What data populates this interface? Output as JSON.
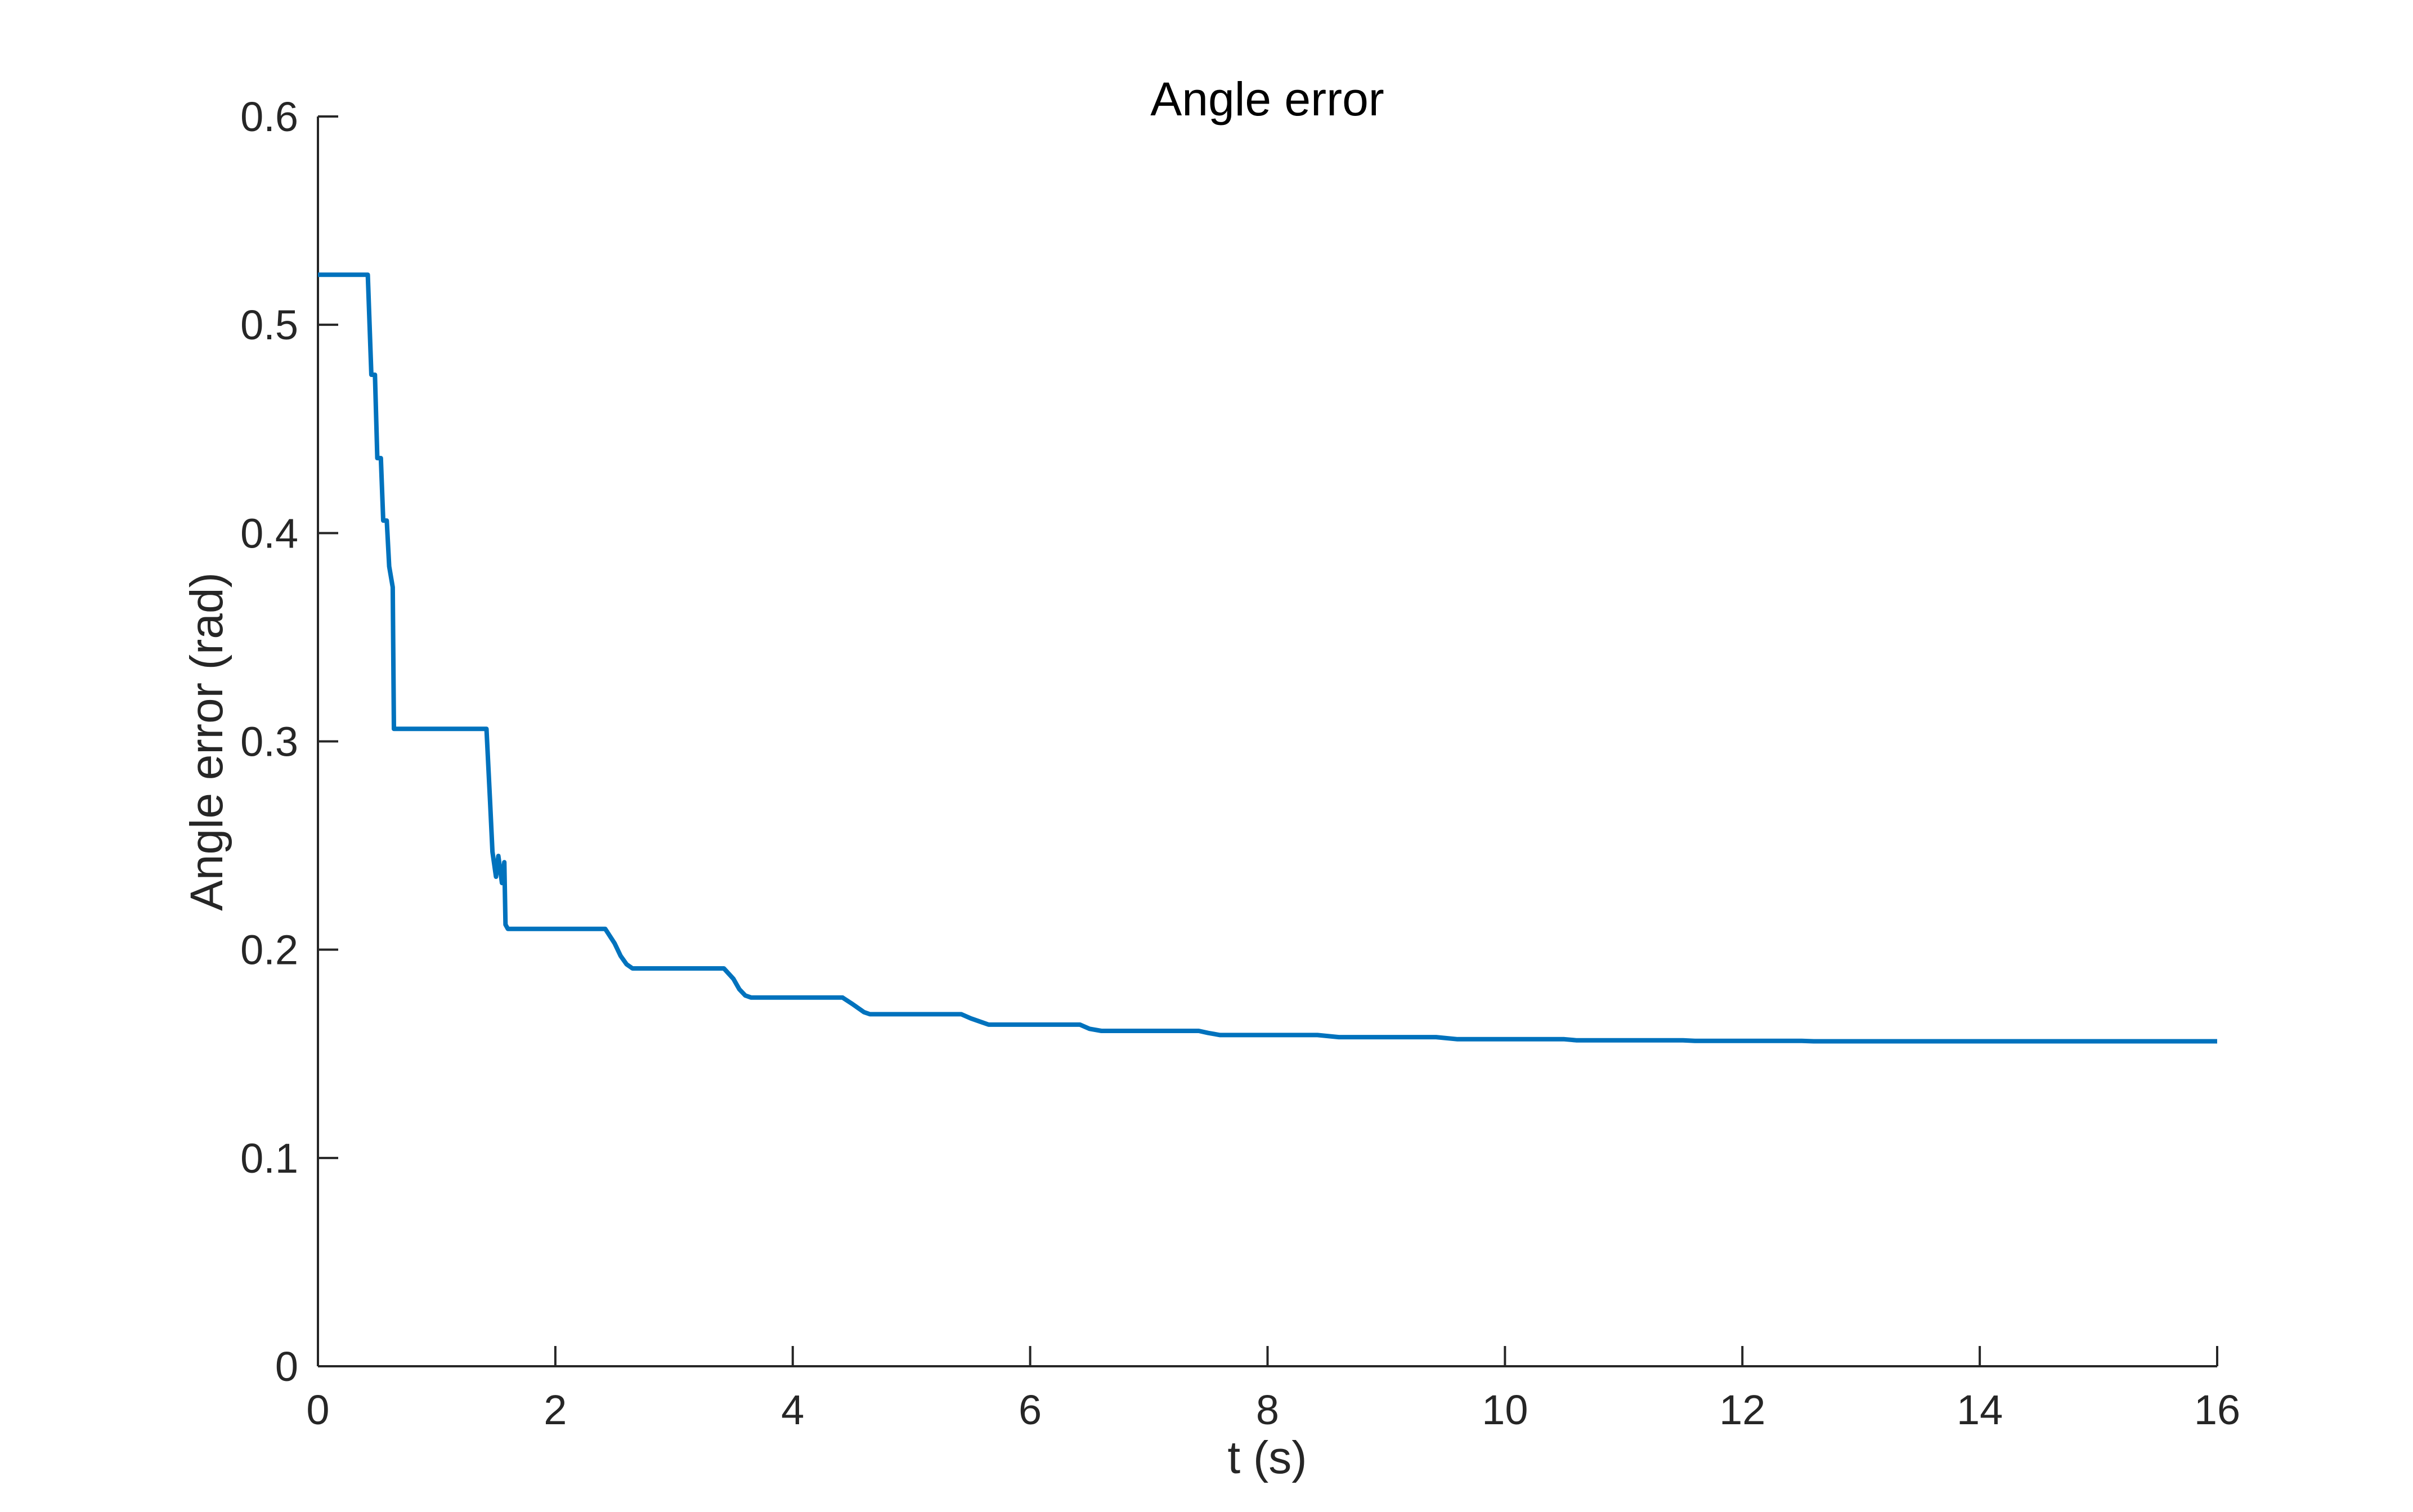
{
  "chart_data": {
    "type": "line",
    "title": "Angle error",
    "xlabel": "t (s)",
    "ylabel": "Angle error (rad)",
    "xlim": [
      0,
      16
    ],
    "ylim": [
      0,
      0.6
    ],
    "xticks": [
      0,
      2,
      4,
      6,
      8,
      10,
      12,
      14,
      16
    ],
    "xtick_labels": [
      "0",
      "2",
      "4",
      "6",
      "8",
      "10",
      "12",
      "14",
      "16"
    ],
    "yticks": [
      0,
      0.1,
      0.2,
      0.3,
      0.4,
      0.5,
      0.6
    ],
    "ytick_labels": [
      "0",
      "0.1",
      "0.2",
      "0.3",
      "0.4",
      "0.5",
      "0.6"
    ],
    "grid": false,
    "legend": "none",
    "series": [
      {
        "color": "#0072BD",
        "x": [
          0,
          0.42,
          0.45,
          0.48,
          0.5,
          0.53,
          0.55,
          0.58,
          0.6,
          0.63,
          0.64,
          1.42,
          1.45,
          1.47,
          1.5,
          1.52,
          1.55,
          1.57,
          1.58,
          1.6,
          1.62,
          1.65,
          2.42,
          2.5,
          2.55,
          2.6,
          2.65,
          3.42,
          3.5,
          3.55,
          3.6,
          3.65,
          4.42,
          4.5,
          4.55,
          4.6,
          4.65,
          5.42,
          5.5,
          5.6,
          5.65,
          6.42,
          6.5,
          6.6,
          6.65,
          7.42,
          7.5,
          7.6,
          7.65,
          8.42,
          8.6,
          8.65,
          9.42,
          9.6,
          9.65,
          10.5,
          10.6,
          11.5,
          11.6,
          12.5,
          12.6,
          14,
          16
        ],
        "y": [
          0.524,
          0.524,
          0.476,
          0.476,
          0.436,
          0.436,
          0.406,
          0.406,
          0.384,
          0.374,
          0.306,
          0.306,
          0.271,
          0.247,
          0.235,
          0.245,
          0.232,
          0.242,
          0.212,
          0.21,
          0.21,
          0.21,
          0.21,
          0.203,
          0.197,
          0.193,
          0.191,
          0.191,
          0.186,
          0.181,
          0.178,
          0.177,
          0.177,
          0.174,
          0.172,
          0.17,
          0.169,
          0.169,
          0.167,
          0.165,
          0.164,
          0.164,
          0.162,
          0.161,
          0.161,
          0.161,
          0.16,
          0.159,
          0.159,
          0.159,
          0.158,
          0.158,
          0.158,
          0.157,
          0.157,
          0.157,
          0.1565,
          0.1565,
          0.1562,
          0.1562,
          0.156,
          0.156,
          0.156
        ]
      }
    ]
  }
}
